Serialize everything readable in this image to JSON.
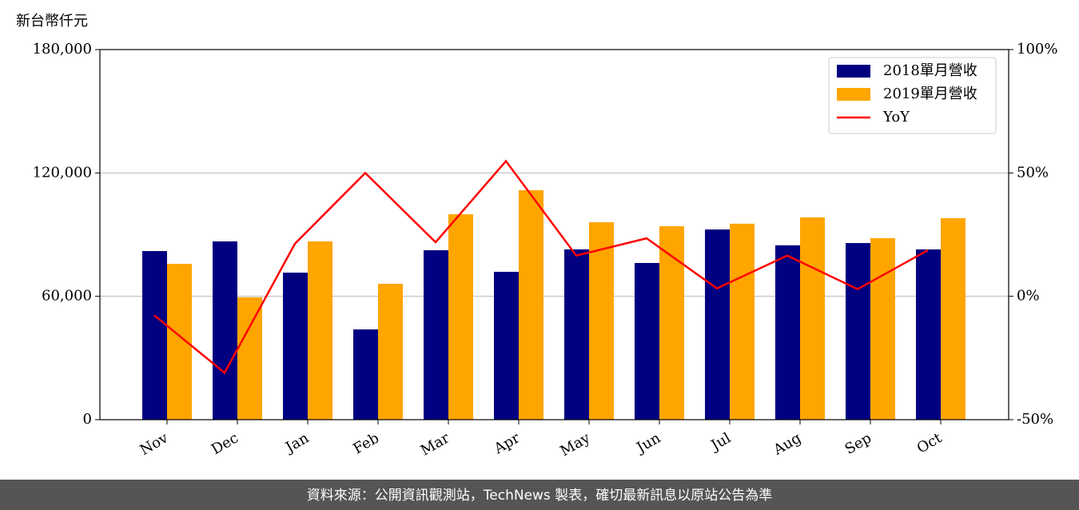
{
  "chart_data": {
    "type": "bar_line",
    "y_label": "新台幣仟元",
    "source": "資料來源：公開資訊觀測站，TechNews 製表，確切最新訊息以原站公告為準",
    "categories": [
      "Nov",
      "Dec",
      "Jan",
      "Feb",
      "Mar",
      "Apr",
      "May",
      "Jun",
      "Jul",
      "Aug",
      "Sep",
      "Oct"
    ],
    "series": [
      {
        "name": "2018單月營收",
        "color": "#000080",
        "type": "bar",
        "values": [
          82000,
          86700,
          71500,
          43900,
          82400,
          71900,
          82800,
          76200,
          92500,
          84800,
          85900,
          82800
        ]
      },
      {
        "name": "2019單月營收",
        "color": "#ffa500",
        "type": "bar",
        "values": [
          75800,
          59500,
          86700,
          66100,
          99900,
          111600,
          96000,
          94100,
          95300,
          98400,
          88300,
          98000
        ]
      },
      {
        "name": "YoY",
        "color": "#ff0000",
        "type": "line",
        "axis": "y2",
        "values": [
          -7.7,
          -31,
          21.3,
          50,
          21.9,
          54.8,
          16.5,
          23.5,
          3.2,
          16.5,
          2.9,
          18.7
        ]
      }
    ],
    "ylim": [
      0,
      180000
    ],
    "yticks": [
      {
        "value": 0,
        "label": "0"
      },
      {
        "value": 60000,
        "label": "60,000"
      },
      {
        "value": 120000,
        "label": "120,000"
      },
      {
        "value": 180000,
        "label": "180,000"
      }
    ],
    "y2lim": [
      -50,
      100
    ],
    "y2ticks": [
      {
        "value": -50,
        "label": "-50%"
      },
      {
        "value": 0,
        "label": "0%"
      },
      {
        "value": 50,
        "label": "50%"
      },
      {
        "value": 100,
        "label": "100%"
      }
    ],
    "grid": true,
    "legend": "upper right"
  }
}
